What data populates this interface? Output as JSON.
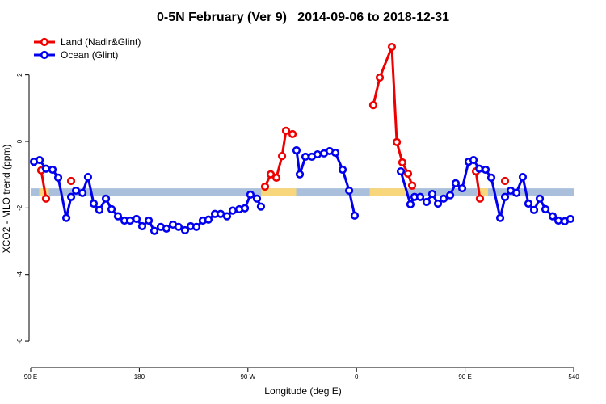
{
  "chart_data": {
    "type": "line",
    "title": "0-5N February (Ver 9)   2014-09-06 to 2018-12-31",
    "x_label": "Longitude (deg E)",
    "y_label": "XCO2 - MLO trend (ppm)",
    "xlim": [
      90,
      540
    ],
    "ylim": [
      -6.8,
      3.4
    ],
    "xticks": [
      {
        "value": 90,
        "label": "90 E"
      },
      180,
      {
        "value": 270,
        "label": "90 W"
      },
      {
        "value": 360,
        "label": "0"
      },
      {
        "value": 450,
        "label": "90 E"
      },
      540
    ],
    "yticks": [
      -6,
      -4,
      -2,
      0,
      2
    ],
    "legend": "top-left",
    "band": {
      "value": -1.52,
      "color": "#a9bfdc",
      "land_color": "#f8d67c",
      "land_spans": [
        [
          97,
          105
        ],
        [
          281,
          310
        ],
        [
          371,
          401
        ],
        [
          460,
          469
        ]
      ]
    },
    "series": [
      {
        "name": "Land (Nadir&Glint)",
        "color": "#ee0000",
        "x": [
          98.7,
          102.7,
          null,
          123.5,
          null,
          284.2,
          288.9,
          293.6,
          298.3,
          301.6,
          307.0,
          null,
          373.9,
          379.3,
          389.3,
          393.4,
          398.0,
          402.7,
          406.1,
          null,
          459.0,
          462.3,
          null,
          483.1
        ],
        "values": [
          -0.87,
          -1.72,
          null,
          -1.19,
          null,
          -1.36,
          -0.99,
          -1.09,
          -0.44,
          0.32,
          0.22,
          null,
          1.09,
          1.92,
          2.84,
          -0.02,
          -0.63,
          -0.97,
          -1.33,
          null,
          -0.9,
          -1.72,
          null,
          -1.19
        ]
      },
      {
        "name": "Ocean (Glint)",
        "color": "#0000ee",
        "x": [
          92.7,
          97.4,
          102.7,
          108.1,
          112.8,
          119.5,
          123.5,
          127.5,
          132.9,
          137.5,
          142.2,
          146.9,
          152.3,
          157.0,
          162.3,
          167.7,
          172.4,
          177.7,
          182.4,
          187.8,
          192.5,
          197.8,
          202.5,
          207.9,
          212.5,
          217.9,
          222.6,
          227.3,
          232.6,
          237.3,
          242.7,
          247.4,
          252.7,
          257.4,
          262.8,
          267.5,
          272.1,
          277.5,
          280.8,
          null,
          310.3,
          313.0,
          317.7,
          323.0,
          327.7,
          333.1,
          337.8,
          342.5,
          348.5,
          353.9,
          358.5,
          null,
          396.7,
          404.7,
          408.1,
          412.8,
          418.1,
          422.8,
          427.5,
          432.2,
          437.6,
          442.2,
          447.6,
          452.9,
          457.0,
          461.7,
          467.0,
          471.7,
          479.1,
          483.1,
          487.8,
          492.5,
          497.8,
          502.5,
          507.2,
          511.9,
          516.6,
          522.6,
          527.3,
          532.6,
          537.3
        ],
        "values": [
          -0.61,
          -0.56,
          -0.82,
          -0.85,
          -1.09,
          -2.3,
          -1.67,
          -1.48,
          -1.55,
          -1.07,
          -1.87,
          -2.06,
          -1.72,
          -2.04,
          -2.25,
          -2.38,
          -2.38,
          -2.33,
          -2.55,
          -2.38,
          -2.69,
          -2.57,
          -2.62,
          -2.5,
          -2.57,
          -2.67,
          -2.55,
          -2.57,
          -2.38,
          -2.35,
          -2.18,
          -2.18,
          -2.25,
          -2.08,
          -2.04,
          -2.01,
          -1.6,
          -1.72,
          -1.96,
          null,
          -0.27,
          -0.99,
          -0.46,
          -0.46,
          -0.39,
          -0.36,
          -0.29,
          -0.34,
          -0.85,
          -1.48,
          -2.23,
          null,
          -0.9,
          -1.89,
          -1.67,
          -1.67,
          -1.82,
          -1.58,
          -1.87,
          -1.72,
          -1.62,
          -1.26,
          -1.41,
          -0.61,
          -0.56,
          -0.82,
          -0.85,
          -1.09,
          -2.3,
          -1.67,
          -1.48,
          -1.55,
          -1.07,
          -1.87,
          -2.06,
          -1.72,
          -2.04,
          -2.25,
          -2.38,
          -2.4,
          -2.33
        ]
      }
    ]
  }
}
